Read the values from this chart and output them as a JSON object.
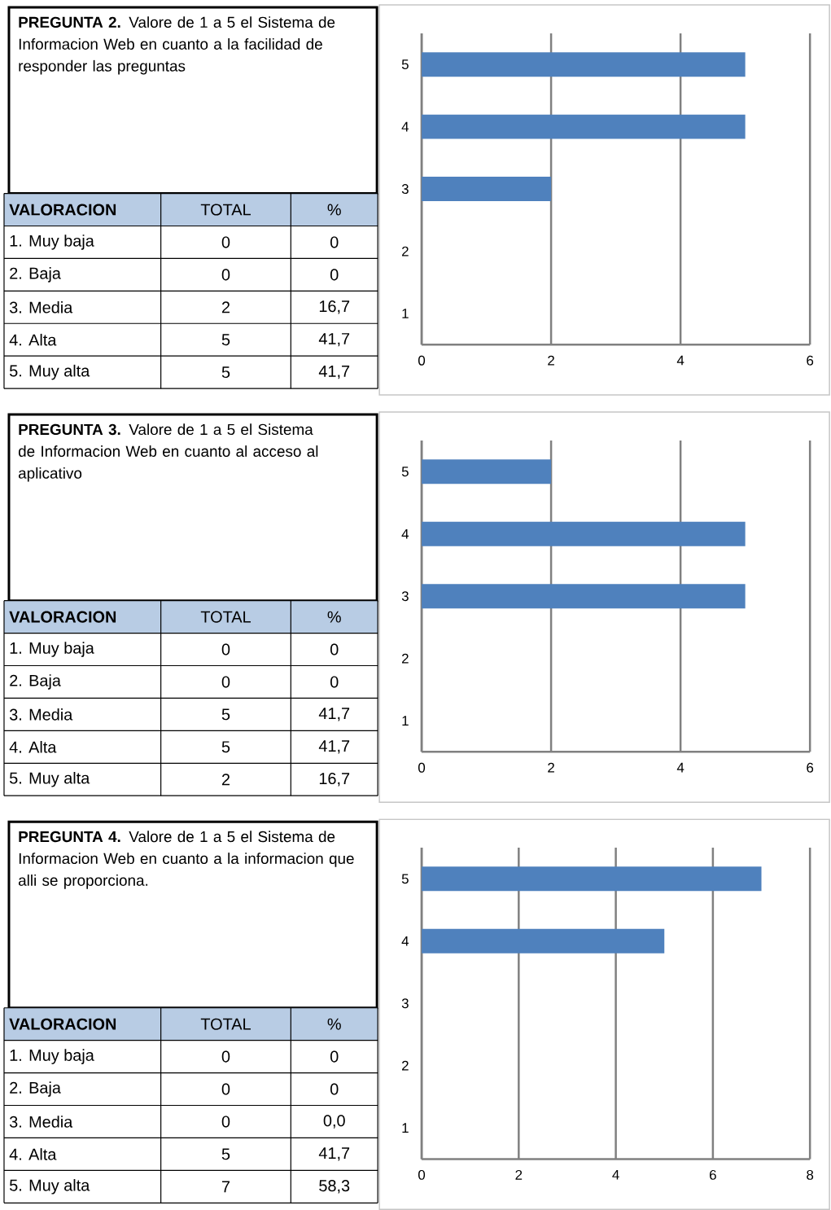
{
  "chart_data": [
    {
      "type": "bar",
      "orientation": "horizontal",
      "title": "**PREGUNTA 2.** Valore de 1 a 5 el Sistema de Informacion Web en cuanto a la facilidad de responder las preguntas",
      "categories": [
        "5",
        "4",
        "3",
        "2",
        "1"
      ],
      "values": [
        5,
        5,
        2,
        0,
        0
      ],
      "color": "#4f81bd",
      "xlim": [
        0,
        6
      ],
      "xticks": [
        0,
        2,
        4,
        6
      ],
      "grid": "x",
      "annotations": [
        "VALORACION",
        "TOTAL",
        "%",
        "1. Muy baja",
        "2. Baja",
        "3. Media",
        "4. Alta",
        "5. Muy alta",
        "0",
        "0",
        "2",
        "5",
        "5",
        "0",
        "0",
        "16,7",
        "41,7",
        "41,7"
      ]
    },
    {
      "type": "bar",
      "orientation": "horizontal",
      "title": "**PREGUNTA 3.** Valore de 1 a 5 el Sistema de Informacion Web en cuanto al acceso al aplicativo",
      "categories": [
        "5",
        "4",
        "3",
        "2",
        "1"
      ],
      "values": [
        2,
        5,
        5,
        0,
        0
      ],
      "color": "#4f81bd",
      "xlim": [
        0,
        6
      ],
      "xticks": [
        0,
        2,
        4,
        6
      ],
      "grid": "x",
      "annotations": [
        "VALORACION",
        "TOTAL",
        "%",
        "1. Muy baja",
        "2. Baja",
        "3. Media",
        "4. Alta",
        "5. Muy alta",
        "0",
        "0",
        "5",
        "5",
        "2",
        "0",
        "0",
        "41,7",
        "41,7",
        "16,7"
      ]
    },
    {
      "type": "bar",
      "orientation": "horizontal",
      "title": "**PREGUNTA 4.** Valore de 1 a 5 el Sistema de Informacion Web en cuanto a la informacion que alli se proporciona.",
      "categories": [
        "5",
        "4",
        "3",
        "2",
        "1"
      ],
      "values": [
        7,
        5,
        0,
        0,
        0
      ],
      "color": "#4f81bd",
      "xlim": [
        0,
        8
      ],
      "xticks": [
        0,
        2,
        4,
        6,
        8
      ],
      "grid": "x",
      "annotations": [
        "VALORACION",
        "TOTAL",
        "%",
        "1. Muy baja",
        "2. Baja",
        "3. Media",
        "4. Alta",
        "5. Muy alta",
        "0",
        "0",
        "0",
        "5",
        "7",
        "0",
        "0",
        "0,0",
        "41,7",
        "58,3"
      ]
    }
  ]
}
